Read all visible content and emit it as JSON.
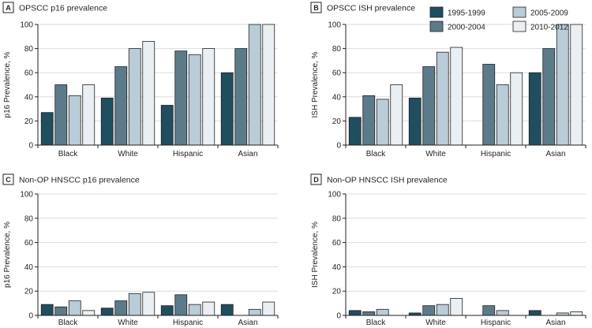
{
  "colors": {
    "1995-1999": "#1f4e5f",
    "2000-2004": "#5b7b8a",
    "2005-2009": "#b9ccd7",
    "2010-2012": "#e9eff2",
    "axis": "#231f20",
    "grid": "#d9dcdd"
  },
  "legend": {
    "entries": [
      "1995-1999",
      "2005-2009",
      "2000-2004",
      "2010-2012"
    ]
  },
  "chart_data": [
    {
      "type": "bar",
      "panel_label": "A",
      "title": "OPSCC p16 prevalence",
      "ylabel": "p16 Prevalence, %",
      "xlabel": "",
      "ylim": [
        0,
        100
      ],
      "yticks": [
        "0",
        "20",
        "40",
        "60",
        "80",
        "100"
      ],
      "grid": "horizontal",
      "categories": [
        "Black",
        "White",
        "Hispanic",
        "Asian"
      ],
      "series": [
        {
          "name": "1995-1999",
          "values": [
            27,
            39,
            33,
            60
          ]
        },
        {
          "name": "2000-2004",
          "values": [
            50,
            65,
            78,
            80
          ]
        },
        {
          "name": "2005-2009",
          "values": [
            41,
            80,
            75,
            100
          ]
        },
        {
          "name": "2010-2012",
          "values": [
            50,
            86,
            80,
            100
          ]
        }
      ]
    },
    {
      "type": "bar",
      "panel_label": "B",
      "title": "OPSCC ISH prevalence",
      "ylabel": "ISH Prevalence, %",
      "xlabel": "",
      "ylim": [
        0,
        100
      ],
      "yticks": [
        "0",
        "20",
        "40",
        "60",
        "80",
        "100"
      ],
      "grid": "horizontal",
      "categories": [
        "Black",
        "White",
        "Hispanic",
        "Asian"
      ],
      "series": [
        {
          "name": "1995-1999",
          "values": [
            23,
            39,
            0,
            60
          ]
        },
        {
          "name": "2000-2004",
          "values": [
            41,
            65,
            67,
            80
          ]
        },
        {
          "name": "2005-2009",
          "values": [
            38,
            77,
            50,
            100
          ]
        },
        {
          "name": "2010-2012",
          "values": [
            50,
            81,
            60,
            100
          ]
        }
      ]
    },
    {
      "type": "bar",
      "panel_label": "C",
      "title": "Non-OP HNSCC p16 prevalence",
      "ylabel": "p16 Prevalence, %",
      "xlabel": "",
      "ylim": [
        0,
        100
      ],
      "yticks": [
        "0",
        "20",
        "40",
        "60",
        "80",
        "100"
      ],
      "grid": "horizontal",
      "categories": [
        "Black",
        "White",
        "Hispanic",
        "Asian"
      ],
      "series": [
        {
          "name": "1995-1999",
          "values": [
            9,
            6,
            8,
            9
          ]
        },
        {
          "name": "2000-2004",
          "values": [
            7,
            12,
            17,
            0
          ]
        },
        {
          "name": "2005-2009",
          "values": [
            12,
            18,
            9,
            5
          ]
        },
        {
          "name": "2010-2012",
          "values": [
            4,
            19,
            11,
            11
          ]
        }
      ]
    },
    {
      "type": "bar",
      "panel_label": "D",
      "title": "Non-OP HNSCC ISH prevalence",
      "ylabel": "ISH Prevalence, %",
      "xlabel": "",
      "ylim": [
        0,
        100
      ],
      "yticks": [
        "0",
        "20",
        "40",
        "60",
        "80",
        "100"
      ],
      "grid": "horizontal",
      "categories": [
        "Black",
        "White",
        "Hispanic",
        "Asian"
      ],
      "series": [
        {
          "name": "1995-1999",
          "values": [
            4,
            2,
            0,
            4
          ]
        },
        {
          "name": "2000-2004",
          "values": [
            3,
            8,
            8,
            0
          ]
        },
        {
          "name": "2005-2009",
          "values": [
            5,
            9,
            4,
            2
          ]
        },
        {
          "name": "2010-2012",
          "values": [
            0,
            14,
            0,
            3
          ]
        }
      ]
    }
  ]
}
